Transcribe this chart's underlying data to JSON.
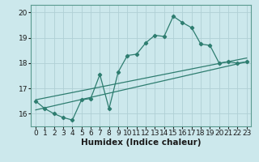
{
  "xlabel": "Humidex (Indice chaleur)",
  "bg_color": "#cce8ec",
  "grid_color": "#b0d0d5",
  "line_color": "#2e7d70",
  "xlim": [
    -0.5,
    23.5
  ],
  "ylim": [
    15.5,
    20.3
  ],
  "xticks": [
    0,
    1,
    2,
    3,
    4,
    5,
    6,
    7,
    8,
    9,
    10,
    11,
    12,
    13,
    14,
    15,
    16,
    17,
    18,
    19,
    20,
    21,
    22,
    23
  ],
  "yticks": [
    16,
    17,
    18,
    19,
    20
  ],
  "curve_x": [
    0,
    1,
    2,
    3,
    4,
    5,
    6,
    7,
    8,
    9,
    10,
    11,
    12,
    13,
    14,
    15,
    16,
    17,
    18,
    19,
    20,
    21,
    22,
    23
  ],
  "curve_y": [
    16.5,
    16.2,
    16.0,
    15.85,
    15.75,
    16.55,
    16.6,
    17.55,
    16.2,
    17.65,
    18.3,
    18.35,
    18.8,
    19.1,
    19.05,
    19.85,
    19.6,
    19.4,
    18.75,
    18.7,
    18.0,
    18.05,
    18.0,
    18.05
  ],
  "trend1_x": [
    0,
    23
  ],
  "trend1_y": [
    16.15,
    18.05
  ],
  "trend2_x": [
    0,
    23
  ],
  "trend2_y": [
    16.55,
    18.2
  ],
  "font_size_xlabel": 7.5,
  "font_size_tick": 6.5
}
